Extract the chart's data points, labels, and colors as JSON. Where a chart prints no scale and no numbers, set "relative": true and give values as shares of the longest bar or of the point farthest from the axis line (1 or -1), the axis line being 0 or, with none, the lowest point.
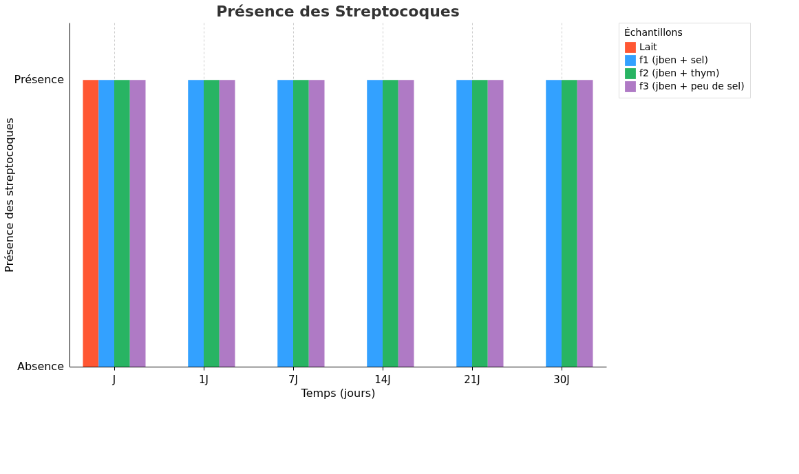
{
  "chart_data": {
    "type": "bar",
    "title": "Présence des Streptocoques",
    "xlabel": "Temps (jours)",
    "ylabel": "Présence des streptocoques",
    "legend_title": "Échantillons",
    "categories": [
      "J",
      "1J",
      "7J",
      "14J",
      "21J",
      "30J"
    ],
    "series": [
      {
        "name": "Lait",
        "color": "#ff5733",
        "values": [
          1,
          0,
          0,
          0,
          0,
          0
        ]
      },
      {
        "name": "f1 (jben + sel)",
        "color": "#33a1ff",
        "values": [
          1,
          1,
          1,
          1,
          1,
          1
        ]
      },
      {
        "name": "f2 (jben + thym)",
        "color": "#28b463",
        "values": [
          1,
          1,
          1,
          1,
          1,
          1
        ]
      },
      {
        "name": "f3 (jben + peu de sel)",
        "color": "#af7ac5",
        "values": [
          1,
          1,
          1,
          1,
          1,
          1
        ]
      }
    ],
    "relative": true,
    "annotations": [
      "Absence",
      "Présence"
    ],
    "grid": "x",
    "legend": "top right"
  }
}
